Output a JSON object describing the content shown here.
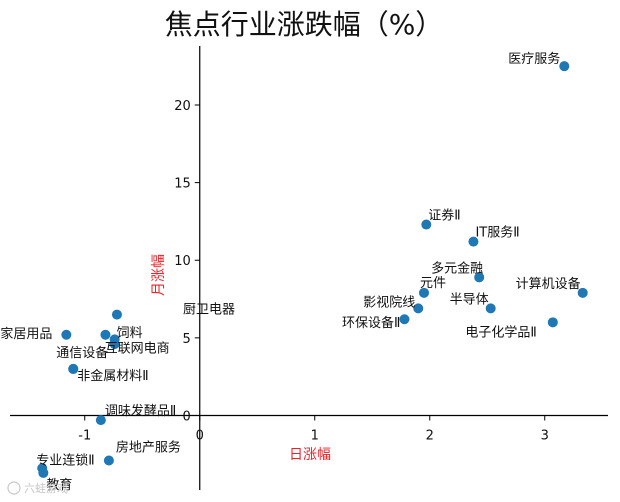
{
  "chart_data": {
    "type": "scatter",
    "title": "焦点行业涨跌幅（%）",
    "xlabel": "日涨幅",
    "ylabel": "月涨幅",
    "xlim": [
      -1.65,
      3.55
    ],
    "ylim": [
      -4.8,
      23.8
    ],
    "xticks": [
      -1,
      0,
      1,
      2,
      3
    ],
    "yticks": [
      0,
      5,
      10,
      15,
      20
    ],
    "point_color": "#1f77b4",
    "axis_label_color": "#e8232a",
    "points": [
      {
        "label": "医疗服务",
        "x": 3.17,
        "y": 22.5
      },
      {
        "label": "证券Ⅱ",
        "x": 1.97,
        "y": 12.3
      },
      {
        "label": "IT服务Ⅱ",
        "x": 2.38,
        "y": 11.2
      },
      {
        "label": "多元金融",
        "x": 2.43,
        "y": 8.9
      },
      {
        "label": "计算机设备",
        "x": 3.33,
        "y": 7.9
      },
      {
        "label": "元件",
        "x": 1.95,
        "y": 7.9
      },
      {
        "label": "半导体",
        "x": 2.53,
        "y": 6.9
      },
      {
        "label": "影视院线",
        "x": 1.9,
        "y": 6.9
      },
      {
        "label": "环保设备Ⅱ",
        "x": 1.78,
        "y": 6.2
      },
      {
        "label": "电子化学品Ⅱ",
        "x": 3.07,
        "y": 6.0
      },
      {
        "label": "厨卫电器",
        "x": -0.72,
        "y": 6.5
      },
      {
        "label": "互联网电商",
        "x": -0.74,
        "y": 4.9
      },
      {
        "label": "饲料",
        "x": -0.74,
        "y": 4.6
      },
      {
        "label": "家居用品",
        "x": -1.16,
        "y": 5.2
      },
      {
        "label": "",
        "x": -0.82,
        "y": 5.2
      },
      {
        "label": "通信设备",
        "x": -1.1,
        "y": 3.0
      },
      {
        "label": "非金属材料Ⅱ",
        "x": -1.1,
        "y": 3.0
      },
      {
        "label": "调味发酵品Ⅱ",
        "x": -0.86,
        "y": -0.3
      },
      {
        "label": "房地产服务",
        "x": -0.79,
        "y": -2.9
      },
      {
        "label": "专业连锁Ⅱ",
        "x": -1.37,
        "y": -3.4
      },
      {
        "label": "教育",
        "x": -1.36,
        "y": -3.7
      }
    ]
  },
  "watermark": "六蛙游戏"
}
